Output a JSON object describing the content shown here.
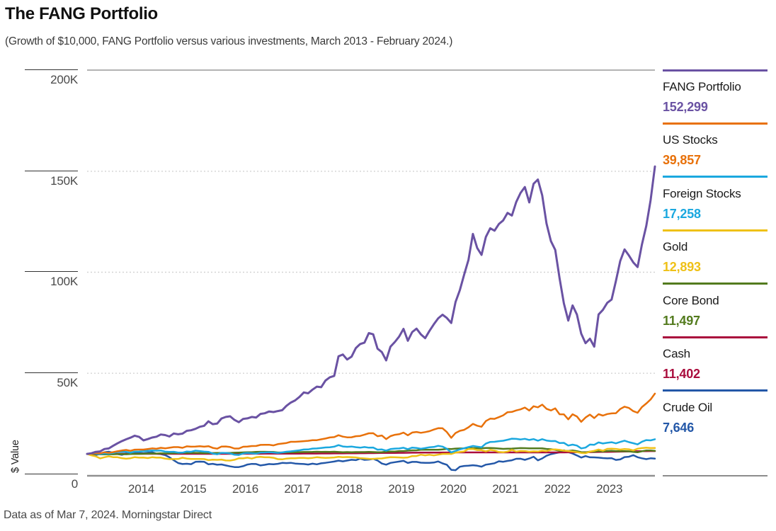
{
  "title": "The FANG Portfolio",
  "subtitle": "(Growth of $10,000, FANG Portfolio versus various investments, March 2013 - February 2024.)",
  "footnote": "Data as of Mar 7, 2024. Morningstar Direct",
  "y_axis": {
    "label": "$ Value",
    "ticks": [
      {
        "label": "200K",
        "value": 200000
      },
      {
        "label": "150K",
        "value": 150000
      },
      {
        "label": "100K",
        "value": 100000
      },
      {
        "label": "50K",
        "value": 50000
      },
      {
        "label": "0",
        "value": 0
      }
    ]
  },
  "x_axis": {
    "years": [
      "2014",
      "2015",
      "2016",
      "2017",
      "2018",
      "2019",
      "2020",
      "2021",
      "2022",
      "2023"
    ]
  },
  "chart_data": {
    "type": "line",
    "title": "The FANG Portfolio",
    "subtitle": "Growth of $10,000, FANG Portfolio versus various investments, March 2013 - February 2024.",
    "units": "USD",
    "x_start": "2013-03",
    "x_end": "2024-02",
    "x_interval": "monthly",
    "xlabel": "",
    "ylabel": "$ Value",
    "ylim": [
      0,
      200000
    ],
    "gridlines": [
      50000,
      100000,
      150000,
      200000
    ],
    "grid": "dotted-horizontal",
    "legend_position": "right",
    "series": [
      {
        "name": "FANG Portfolio",
        "display_value": "152,299",
        "final_value": 152299,
        "color": "#6A52A3",
        "values": [
          10000,
          10300,
          11000,
          11200,
          12400,
          12700,
          14000,
          15200,
          16300,
          17200,
          18000,
          19000,
          18400,
          16700,
          17300,
          18100,
          18500,
          19600,
          19300,
          18600,
          20100,
          19700,
          20000,
          21400,
          21700,
          22400,
          23400,
          23900,
          26100,
          24700,
          25000,
          27500,
          28300,
          28600,
          26800,
          25700,
          27300,
          27600,
          28300,
          28000,
          29800,
          30100,
          31000,
          30700,
          31200,
          31600,
          33800,
          35400,
          36500,
          38200,
          40400,
          40000,
          41800,
          43300,
          43000,
          46300,
          47900,
          48600,
          58300,
          59200,
          56700,
          58100,
          62400,
          64400,
          65100,
          69800,
          69200,
          62100,
          60400,
          56300,
          63100,
          65400,
          68100,
          71900,
          66000,
          70300,
          72000,
          69200,
          67300,
          70900,
          74200,
          77100,
          78900,
          77300,
          74800,
          85200,
          91100,
          98800,
          106100,
          118900,
          111900,
          108500,
          117400,
          121700,
          120500,
          123800,
          125600,
          129300,
          128000,
          134700,
          139200,
          142100,
          134500,
          143700,
          145800,
          138000,
          124000,
          115300,
          111000,
          97000,
          84500,
          76000,
          83500,
          79000,
          69500,
          64800,
          67000,
          63100,
          79000,
          81300,
          84800,
          86400,
          95600,
          105500,
          111200,
          108200,
          104800,
          102500,
          113600,
          122900,
          135600,
          152299
        ]
      },
      {
        "name": "US Stocks",
        "display_value": "39,857",
        "final_value": 39857,
        "color": "#E8710A",
        "values": [
          10000,
          10150,
          10390,
          10250,
          10790,
          10480,
          10860,
          11310,
          11660,
          11950,
          11540,
          12080,
          12140,
          12130,
          12400,
          12720,
          12500,
          13020,
          12740,
          13050,
          13370,
          13370,
          12990,
          13730,
          13580,
          13640,
          13820,
          13580,
          13800,
          12970,
          12590,
          13590,
          13670,
          13390,
          12640,
          12640,
          13530,
          13620,
          13870,
          13900,
          14450,
          14480,
          14500,
          14200,
          14830,
          15120,
          15400,
          15970,
          15980,
          16140,
          16310,
          16460,
          16770,
          16800,
          17210,
          17580,
          18120,
          18300,
          19260,
          18550,
          18180,
          18240,
          18760,
          18880,
          19510,
          20200,
          20230,
          18740,
          19110,
          17320,
          18800,
          19470,
          19750,
          20540,
          19210,
          20560,
          20860,
          20440,
          20800,
          21250,
          22060,
          22700,
          22680,
          20830,
          17960,
          20330,
          21420,
          21920,
          23170,
          24840,
          23930,
          23410,
          26260,
          27440,
          27330,
          28190,
          29100,
          30620,
          30760,
          31520,
          32040,
          32950,
          31480,
          33580,
          33070,
          34370,
          32320,
          31500,
          32530,
          29610,
          29570,
          27090,
          29630,
          28520,
          25870,
          28010,
          29460,
          27740,
          29650,
          28950,
          29730,
          30040,
          30150,
          32210,
          33360,
          32720,
          31170,
          30340,
          33160,
          34930,
          36940,
          39857
        ]
      },
      {
        "name": "Foreign Stocks",
        "display_value": "17,258",
        "final_value": 17258,
        "color": "#1BA8DF",
        "values": [
          10000,
          10290,
          10160,
          9850,
          10230,
          10060,
          10460,
          10960,
          10990,
          11010,
          10570,
          11120,
          11170,
          11310,
          11530,
          11670,
          11560,
          11620,
          11120,
          10970,
          11030,
          10640,
          10630,
          11190,
          11030,
          11590,
          11390,
          11100,
          10990,
          10170,
          9790,
          10520,
          10430,
          10240,
          9560,
          9450,
          10210,
          10480,
          10290,
          10140,
          10630,
          10700,
          10830,
          10680,
          10440,
          10710,
          11080,
          11250,
          11530,
          11770,
          12150,
          12200,
          12620,
          12690,
          12930,
          13170,
          13280,
          13580,
          14330,
          13670,
          13510,
          13620,
          13310,
          13060,
          13380,
          13090,
          13150,
          12090,
          12200,
          11630,
          12380,
          12620,
          12700,
          13030,
          12330,
          13100,
          12940,
          12530,
          12860,
          13300,
          13420,
          13990,
          13610,
          12530,
          10710,
          11510,
          12240,
          12790,
          13350,
          13920,
          13590,
          13300,
          15080,
          15930,
          15970,
          16290,
          16520,
          16990,
          17520,
          17430,
          17140,
          17470,
          16910,
          17320,
          16560,
          17270,
          16620,
          16320,
          16370,
          15340,
          15450,
          14110,
          14580,
          14120,
          12730,
          13120,
          14600,
          14500,
          15660,
          15130,
          15500,
          15770,
          15210,
          15900,
          16540,
          15810,
          15290,
          14670,
          16020,
          16820,
          16680,
          17258
        ]
      },
      {
        "name": "Gold",
        "display_value": "12,893",
        "final_value": 12893,
        "color": "#EFC117",
        "values": [
          10000,
          9270,
          8790,
          7780,
          8330,
          8790,
          8380,
          8350,
          7900,
          7590,
          7840,
          8380,
          8130,
          8160,
          7910,
          8340,
          8120,
          8150,
          7650,
          7390,
          7420,
          7480,
          8090,
          7660,
          7480,
          7470,
          7510,
          7420,
          6910,
          7160,
          7030,
          7190,
          6720,
          6700,
          7080,
          7800,
          7790,
          8140,
          7680,
          8340,
          8540,
          8290,
          8300,
          8050,
          7390,
          7280,
          7670,
          7860,
          7850,
          8020,
          8020,
          7840,
          8010,
          8340,
          8130,
          8020,
          8080,
          8240,
          8520,
          8370,
          8430,
          8360,
          8250,
          7900,
          7730,
          7570,
          7520,
          7700,
          7740,
          8100,
          8360,
          8310,
          8230,
          8110,
          8240,
          8900,
          8930,
          9600,
          9300,
          9560,
          9240,
          9590,
          10000,
          10020,
          9970,
          10650,
          10940,
          11220,
          12460,
          12420,
          11930,
          11860,
          11220,
          11980,
          11680,
          10950,
          10790,
          11140,
          11980,
          11120,
          11410,
          11400,
          11080,
          11260,
          11140,
          11550,
          11350,
          12030,
          12250,
          11980,
          11590,
          11380,
          11160,
          10860,
          10490,
          10350,
          11110,
          11520,
          12180,
          11560,
          12470,
          12590,
          12430,
          12130,
          12410,
          12260,
          11720,
          12550,
          12860,
          13030,
          12870,
          12893
        ]
      },
      {
        "name": "Core Bond",
        "display_value": "11,497",
        "final_value": 11497,
        "color": "#537B1E",
        "values": [
          10000,
          10100,
          9920,
          9770,
          9780,
          9730,
          9820,
          9900,
          9870,
          9810,
          9960,
          10010,
          9990,
          10070,
          10180,
          10190,
          10160,
          10270,
          10200,
          10300,
          10370,
          10380,
          10590,
          10490,
          10540,
          10500,
          10470,
          10360,
          10430,
          10420,
          10490,
          10490,
          10460,
          10430,
          10570,
          10640,
          10740,
          10780,
          10780,
          10970,
          11040,
          11030,
          11020,
          10940,
          10680,
          10690,
          10710,
          10780,
          10770,
          10860,
          10940,
          10930,
          10980,
          11080,
          11020,
          11030,
          11020,
          11070,
          10940,
          10840,
          10910,
          10830,
          10900,
          10890,
          10890,
          10960,
          10890,
          10800,
          10870,
          11070,
          11190,
          11180,
          11390,
          11390,
          11590,
          11740,
          11760,
          12070,
          12010,
          12040,
          12030,
          12020,
          12250,
          12470,
          12400,
          12620,
          12680,
          12760,
          12950,
          12840,
          12840,
          12780,
          12900,
          12920,
          12830,
          12640,
          12480,
          12580,
          12620,
          12710,
          12850,
          12830,
          12720,
          12720,
          12760,
          12730,
          12460,
          12320,
          11980,
          11530,
          11600,
          11420,
          11700,
          11370,
          10880,
          10740,
          11140,
          11090,
          11430,
          11140,
          11420,
          11490,
          11370,
          11330,
          11320,
          11250,
          10960,
          10790,
          11280,
          11710,
          11680,
          11497
        ]
      },
      {
        "name": "Cash",
        "display_value": "11,402",
        "final_value": 11402,
        "color": "#AA0D3D",
        "values": [
          10000,
          10000,
          10000,
          10000,
          10000,
          10000,
          10000,
          10010,
          10010,
          10010,
          10010,
          10010,
          10010,
          10010,
          10010,
          10010,
          10010,
          10010,
          10020,
          10020,
          10020,
          10020,
          10020,
          10020,
          10020,
          10020,
          10020,
          10020,
          10030,
          10030,
          10030,
          10030,
          10030,
          10040,
          10040,
          10050,
          10050,
          10060,
          10060,
          10070,
          10070,
          10080,
          10080,
          10090,
          10090,
          10100,
          10110,
          10120,
          10130,
          10140,
          10150,
          10160,
          10170,
          10180,
          10190,
          10200,
          10210,
          10220,
          10230,
          10250,
          10270,
          10290,
          10310,
          10330,
          10350,
          10370,
          10390,
          10410,
          10430,
          10450,
          10470,
          10490,
          10510,
          10530,
          10550,
          10570,
          10590,
          10610,
          10630,
          10650,
          10660,
          10670,
          10680,
          10690,
          10700,
          10710,
          10710,
          10710,
          10710,
          10710,
          10710,
          10710,
          10710,
          10710,
          10710,
          10710,
          10710,
          10710,
          10710,
          10710,
          10710,
          10710,
          10710,
          10710,
          10710,
          10710,
          10710,
          10710,
          10720,
          10730,
          10740,
          10750,
          10770,
          10790,
          10810,
          10840,
          10870,
          10900,
          10930,
          10960,
          11000,
          11040,
          11080,
          11120,
          11160,
          11210,
          11260,
          11310,
          11360,
          11370,
          11380,
          11402
        ]
      },
      {
        "name": "Crude Oil",
        "display_value": "7,646",
        "final_value": 7646,
        "color": "#2458A8",
        "values": [
          10000,
          9580,
          9460,
          9940,
          10810,
          11070,
          10520,
          9930,
          9550,
          10120,
          10000,
          10500,
          10450,
          10290,
          10600,
          10840,
          10080,
          9900,
          9380,
          8290,
          6820,
          5480,
          4960,
          5110,
          4900,
          6060,
          6180,
          6110,
          4840,
          5070,
          4640,
          4780,
          4290,
          3810,
          3460,
          3470,
          3940,
          4720,
          5050,
          4970,
          4280,
          4590,
          4960,
          4820,
          5080,
          5530,
          5430,
          5560,
          5210,
          5070,
          4980,
          4740,
          5160,
          4840,
          5320,
          5590,
          5900,
          6220,
          6650,
          6320,
          6680,
          7070,
          6910,
          7630,
          7060,
          7180,
          7530,
          6720,
          5240,
          4670,
          5540,
          5880,
          6190,
          6560,
          5500,
          6020,
          6020,
          5660,
          5570,
          5570,
          5710,
          6280,
          5300,
          4610,
          2100,
          1940,
          3650,
          4040,
          4150,
          4390,
          4140,
          3690,
          4670,
          4990,
          5370,
          6330,
          6090,
          6530,
          6830,
          7560,
          7600,
          7040,
          7720,
          8600,
          6790,
          7740,
          9070,
          9850,
          10340,
          10770,
          11790,
          10880,
          10150,
          9220,
          8180,
          8900,
          8290,
          8260,
          8120,
          7930,
          7790,
          7880,
          7000,
          7270,
          8420,
          8590,
          9350,
          8340,
          7810,
          7380,
          7800,
          7646
        ]
      }
    ]
  }
}
